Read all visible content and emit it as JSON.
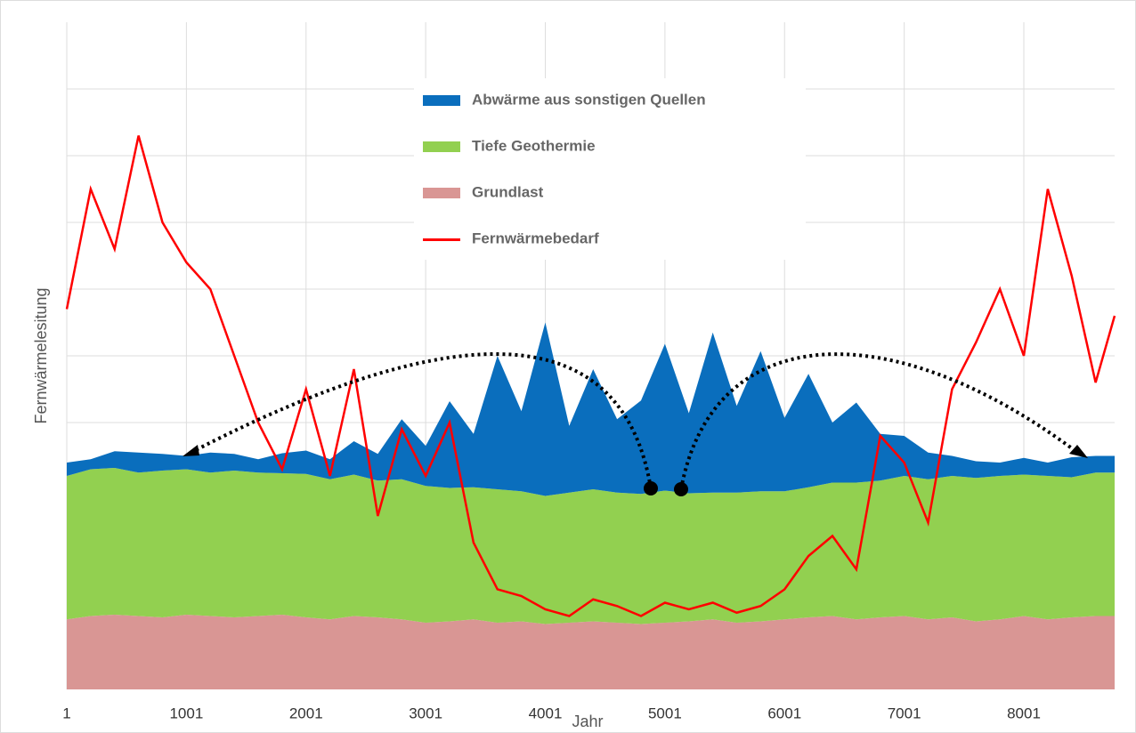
{
  "chart_data": {
    "type": "area",
    "x_label": "Jahr",
    "y_label": "Fernwärmelesitung",
    "x": [
      1,
      201,
      401,
      601,
      801,
      1001,
      1201,
      1401,
      1601,
      1801,
      2001,
      2201,
      2401,
      2601,
      2801,
      3001,
      3201,
      3401,
      3601,
      3801,
      4001,
      4201,
      4401,
      4601,
      4801,
      5001,
      5201,
      5401,
      5601,
      5801,
      6001,
      6201,
      6401,
      6601,
      6801,
      7001,
      7201,
      7401,
      7601,
      7801,
      8001,
      8201,
      8401,
      8601,
      8760
    ],
    "xlim": [
      1,
      8760
    ],
    "xticks": [
      1,
      1001,
      2001,
      3001,
      4001,
      5001,
      6001,
      7001,
      8001
    ],
    "ylim": [
      0,
      10
    ],
    "yticks": [
      1,
      2,
      3,
      4,
      5,
      6,
      7,
      8,
      9
    ],
    "grid": true,
    "legend": "top-center",
    "series": [
      {
        "name": "Abwärme aus sonstigen Quellen",
        "color": "#0a6ebd",
        "kind": "area",
        "values": [
          0.2,
          0.15,
          0.25,
          0.3,
          0.25,
          0.2,
          0.3,
          0.25,
          0.2,
          0.3,
          0.35,
          0.3,
          0.5,
          0.4,
          0.9,
          0.6,
          1.3,
          0.8,
          2.0,
          1.2,
          2.6,
          1.0,
          1.8,
          1.1,
          1.4,
          2.2,
          1.2,
          2.4,
          1.3,
          2.1,
          1.1,
          1.7,
          0.9,
          1.2,
          0.7,
          0.6,
          0.4,
          0.3,
          0.25,
          0.2,
          0.25,
          0.2,
          0.3,
          0.25,
          0.25
        ]
      },
      {
        "name": "Tiefe Geothermie",
        "color": "#92d050",
        "kind": "area",
        "values": [
          2.15,
          2.2,
          2.2,
          2.15,
          2.2,
          2.18,
          2.15,
          2.2,
          2.15,
          2.12,
          2.15,
          2.1,
          2.12,
          2.05,
          2.1,
          2.05,
          2.0,
          1.98,
          2.0,
          1.95,
          1.92,
          1.95,
          1.98,
          1.95,
          1.95,
          1.98,
          1.92,
          1.9,
          1.95,
          1.95,
          1.92,
          1.95,
          2.0,
          2.05,
          2.05,
          2.1,
          2.1,
          2.12,
          2.15,
          2.15,
          2.12,
          2.15,
          2.1,
          2.15,
          2.15
        ]
      },
      {
        "name": "Grundlast",
        "color": "#d99694",
        "kind": "area",
        "values": [
          1.05,
          1.1,
          1.12,
          1.1,
          1.08,
          1.12,
          1.1,
          1.08,
          1.1,
          1.12,
          1.08,
          1.05,
          1.1,
          1.08,
          1.05,
          1.0,
          1.02,
          1.05,
          1.0,
          1.02,
          0.98,
          1.0,
          1.02,
          1.0,
          0.98,
          1.0,
          1.02,
          1.05,
          1.0,
          1.02,
          1.05,
          1.08,
          1.1,
          1.05,
          1.08,
          1.1,
          1.05,
          1.08,
          1.02,
          1.05,
          1.1,
          1.05,
          1.08,
          1.1,
          1.1
        ]
      },
      {
        "name": "Fernwärmebedarf",
        "color": "#ff0000",
        "kind": "line",
        "values": [
          5.7,
          7.5,
          6.6,
          8.3,
          7.0,
          6.4,
          6.0,
          5.0,
          4.0,
          3.3,
          4.5,
          3.2,
          4.8,
          2.6,
          3.9,
          3.2,
          4.0,
          2.2,
          1.5,
          1.4,
          1.2,
          1.1,
          1.35,
          1.25,
          1.1,
          1.3,
          1.2,
          1.3,
          1.15,
          1.25,
          1.5,
          2.0,
          2.3,
          1.8,
          3.8,
          3.4,
          2.5,
          4.5,
          5.2,
          6.0,
          5.0,
          7.5,
          6.2,
          4.6,
          5.6
        ]
      }
    ]
  }
}
